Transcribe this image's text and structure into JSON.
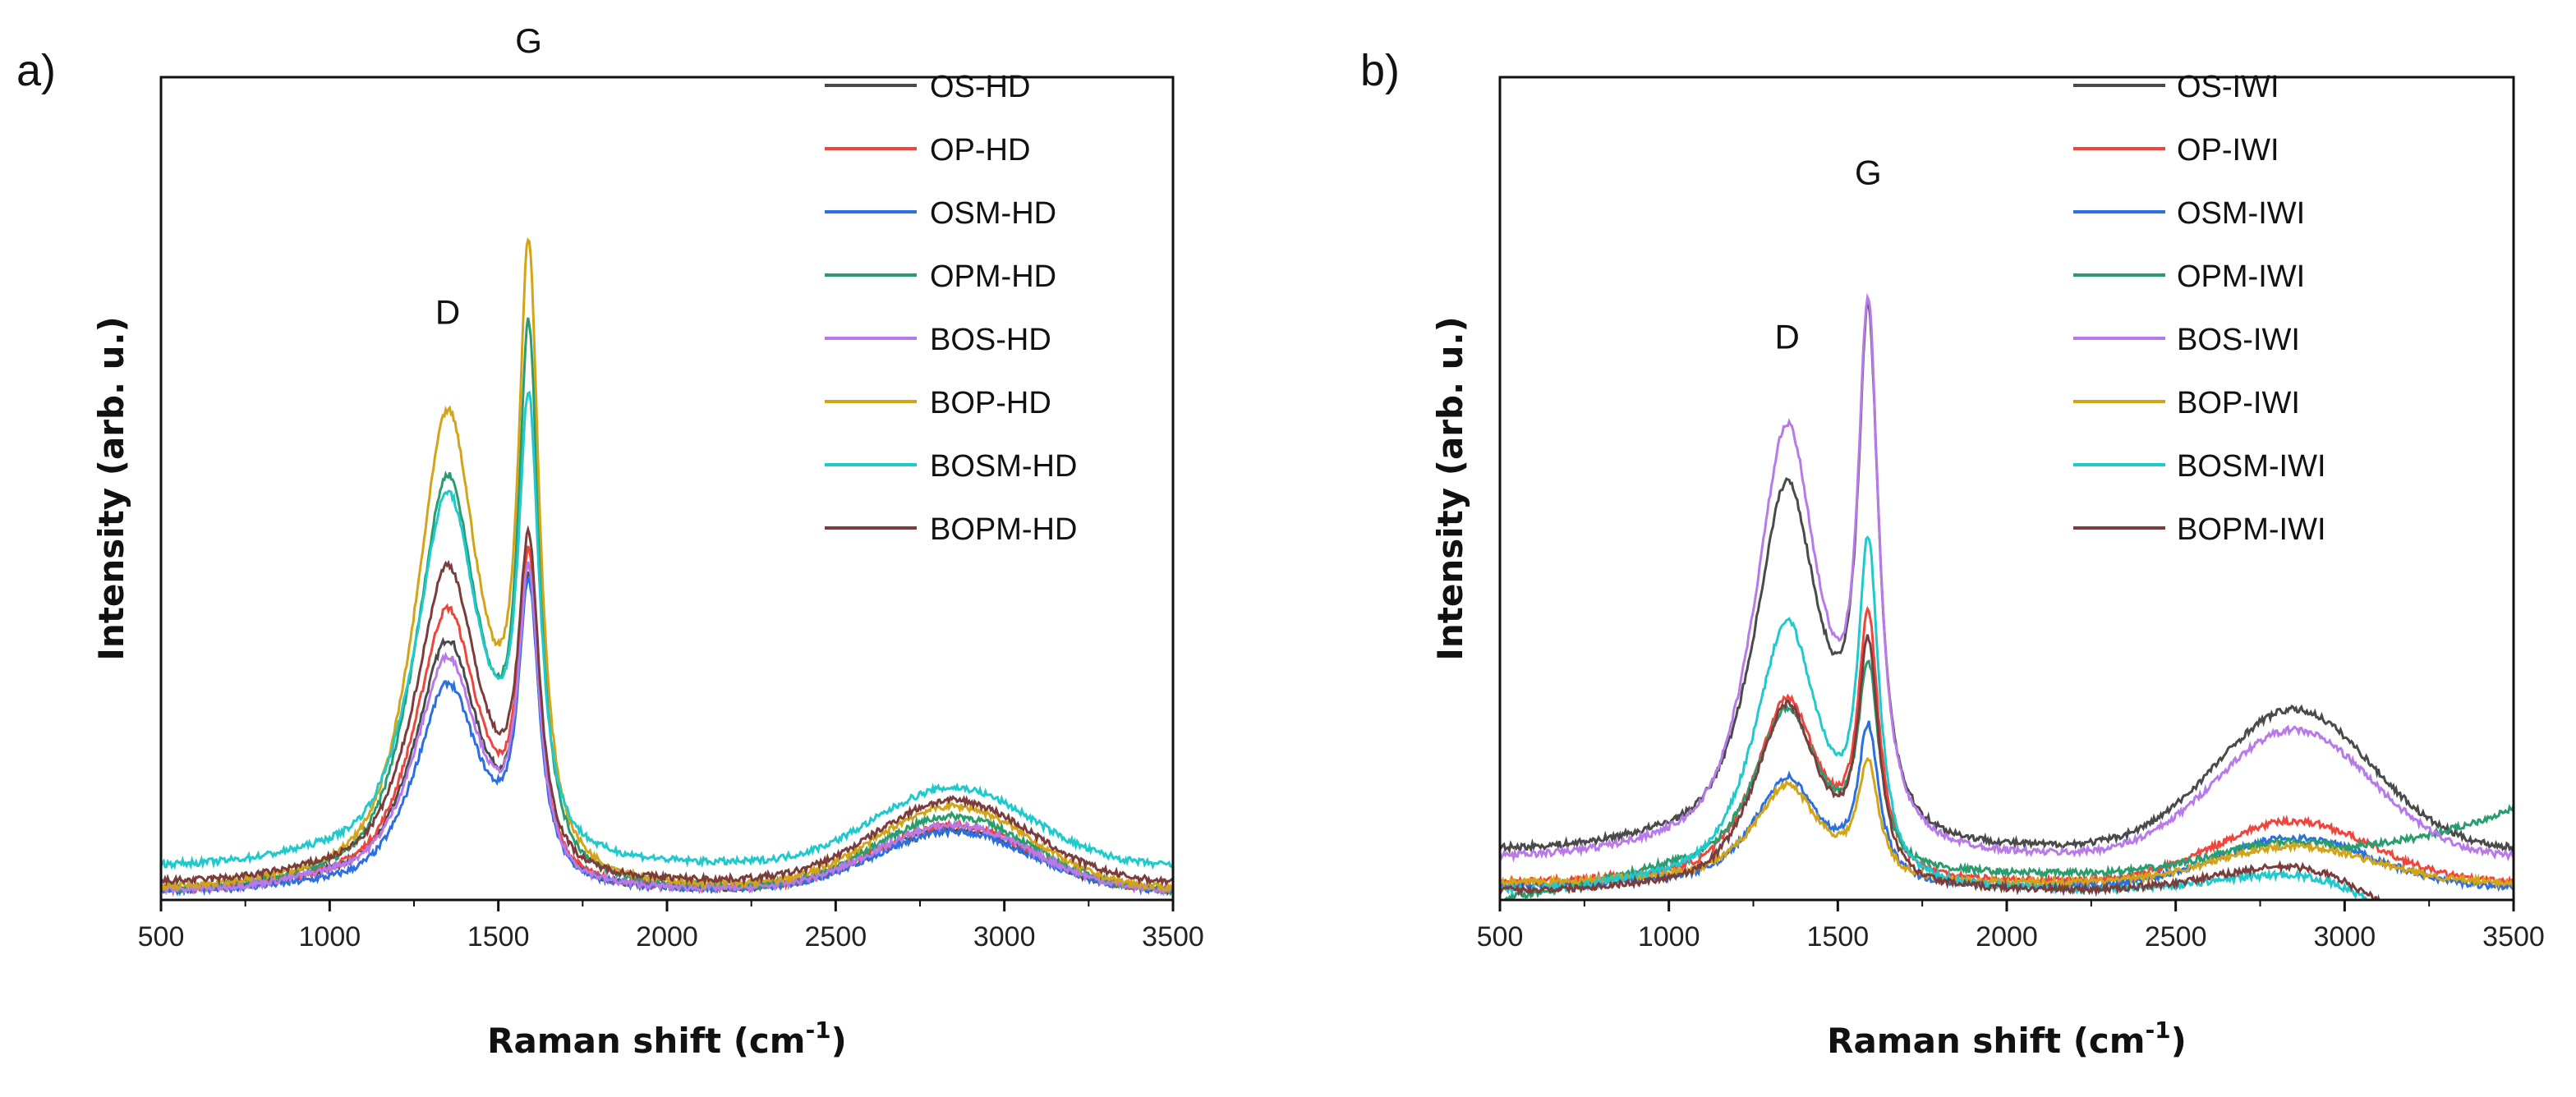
{
  "chart_data": [
    {
      "type": "line",
      "panel_label": "a)",
      "xlabel": "Raman shift (cm",
      "xlabel_sup": "-1",
      "xlabel_end": ")",
      "ylabel": "Intensity (arb. u.)",
      "xlim": [
        500,
        3500
      ],
      "ylim": [
        0,
        1
      ],
      "xticks": [
        "500",
        "1000",
        "1500",
        "2000",
        "2500",
        "3000",
        "3500"
      ],
      "legend_position": "top-right",
      "annotations": [
        {
          "text": "D",
          "x": 1350,
          "y": 0.7
        },
        {
          "text": "G",
          "x": 1590,
          "y": 1.03
        }
      ],
      "series": [
        {
          "name": "OS-HD",
          "color": "#4a4a4a",
          "D": 0.335,
          "G": 0.435,
          "band2D": 0.075,
          "base": 0.01
        },
        {
          "name": "OP-HD",
          "color": "#f0453c",
          "D": 0.375,
          "G": 0.47,
          "band2D": 0.08,
          "base": 0.01
        },
        {
          "name": "OSM-HD",
          "color": "#2b6fe0",
          "D": 0.285,
          "G": 0.425,
          "band2D": 0.072,
          "base": 0.01
        },
        {
          "name": "OPM-HD",
          "color": "#2a9d6e",
          "D": 0.555,
          "G": 0.77,
          "band2D": 0.09,
          "base": 0.01
        },
        {
          "name": "BOS-HD",
          "color": "#b77ae8",
          "D": 0.315,
          "G": 0.445,
          "band2D": 0.08,
          "base": 0.01
        },
        {
          "name": "BOP-HD",
          "color": "#d4a418",
          "D": 0.64,
          "G": 0.88,
          "band2D": 0.1,
          "base": 0.012
        },
        {
          "name": "BOSM-HD",
          "color": "#1fc9cc",
          "D": 0.53,
          "G": 0.685,
          "band2D": 0.095,
          "base": 0.04
        },
        {
          "name": "BOPM-HD",
          "color": "#7b3c3c",
          "D": 0.43,
          "G": 0.5,
          "band2D": 0.1,
          "base": 0.02
        }
      ]
    },
    {
      "type": "line",
      "panel_label": "b)",
      "xlabel": "Raman shift (cm",
      "xlabel_sup": "-1",
      "xlabel_end": ")",
      "ylabel": "Intensity (arb. u.)",
      "xlim": [
        500,
        3500
      ],
      "ylim": [
        0,
        1
      ],
      "xticks": [
        "500",
        "1000",
        "1500",
        "2000",
        "2500",
        "3000",
        "3500"
      ],
      "legend_position": "top-right",
      "annotations": [
        {
          "text": "D",
          "x": 1350,
          "y": 0.67
        },
        {
          "text": "G",
          "x": 1590,
          "y": 0.87
        }
      ],
      "series": [
        {
          "name": "OS-IWI",
          "color": "#4a4a4a",
          "D": 0.55,
          "G": 0.795,
          "band2D": 0.17,
          "base": 0.06
        },
        {
          "name": "OP-IWI",
          "color": "#f0453c",
          "D": 0.265,
          "G": 0.385,
          "band2D": 0.075,
          "base": 0.02
        },
        {
          "name": "OSM-IWI",
          "color": "#2b6fe0",
          "D": 0.16,
          "G": 0.235,
          "band2D": 0.06,
          "base": 0.015
        },
        {
          "name": "OPM-IWI",
          "color": "#2a9d6e",
          "D": 0.25,
          "G": 0.325,
          "band2D": 0.04,
          "base": 0.03
        },
        {
          "name": "BOS-IWI",
          "color": "#b77ae8",
          "D": 0.62,
          "G": 0.81,
          "band2D": 0.155,
          "base": 0.05
        },
        {
          "name": "BOP-IWI",
          "color": "#d4a418",
          "D": 0.148,
          "G": 0.19,
          "band2D": 0.045,
          "base": 0.02
        },
        {
          "name": "BOSM-IWI",
          "color": "#1fc9cc",
          "D": 0.36,
          "G": 0.485,
          "band2D": 0.02,
          "base": 0.01
        },
        {
          "name": "BOPM-IWI",
          "color": "#7b3c3c",
          "D": 0.255,
          "G": 0.35,
          "band2D": 0.03,
          "base": 0.01
        }
      ]
    }
  ]
}
